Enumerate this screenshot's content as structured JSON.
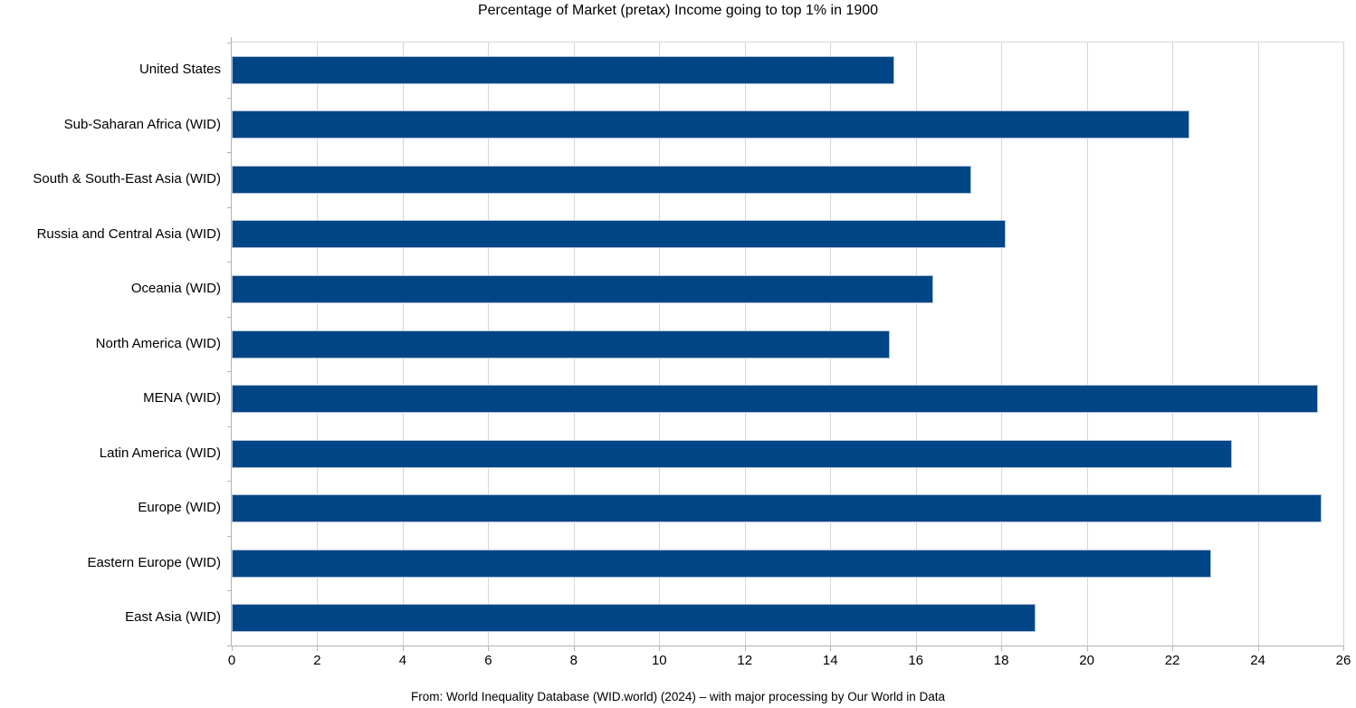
{
  "title": "Percentage of Market (pretax) Income going to top 1% in 1900",
  "source_note": "From: World Inequality Database (WID.world) (2024) – with major processing by Our World in Data",
  "colors": {
    "bar": "#004586",
    "bar_border": "#aec0d8",
    "gridline": "#d6d6d6",
    "axis": "#b3b3b3",
    "text": "#000000",
    "background": "#ffffff"
  },
  "chart_data": {
    "type": "bar",
    "orientation": "horizontal",
    "title": "Percentage of Market (pretax) Income going to top 1% in 1900",
    "categories": [
      "United States",
      "Sub-Saharan Africa (WID)",
      "South & South-East Asia (WID)",
      "Russia and Central Asia (WID)",
      "Oceania (WID)",
      "North America (WID)",
      "MENA (WID)",
      "Latin America (WID)",
      "Europe (WID)",
      "Eastern Europe (WID)",
      "East Asia (WID)"
    ],
    "values": [
      15.5,
      22.4,
      17.3,
      18.1,
      16.4,
      15.4,
      25.4,
      23.4,
      25.5,
      22.9,
      18.8
    ],
    "unit": "%",
    "xlabel": "",
    "ylabel": "",
    "xlim": [
      0,
      26
    ],
    "xticks": [
      0,
      2,
      4,
      6,
      8,
      10,
      12,
      14,
      16,
      18,
      20,
      22,
      24,
      26
    ],
    "grid": "vertical",
    "legend": "none",
    "source": "From: World Inequality Database (WID.world) (2024) – with major processing by Our World in Data"
  }
}
